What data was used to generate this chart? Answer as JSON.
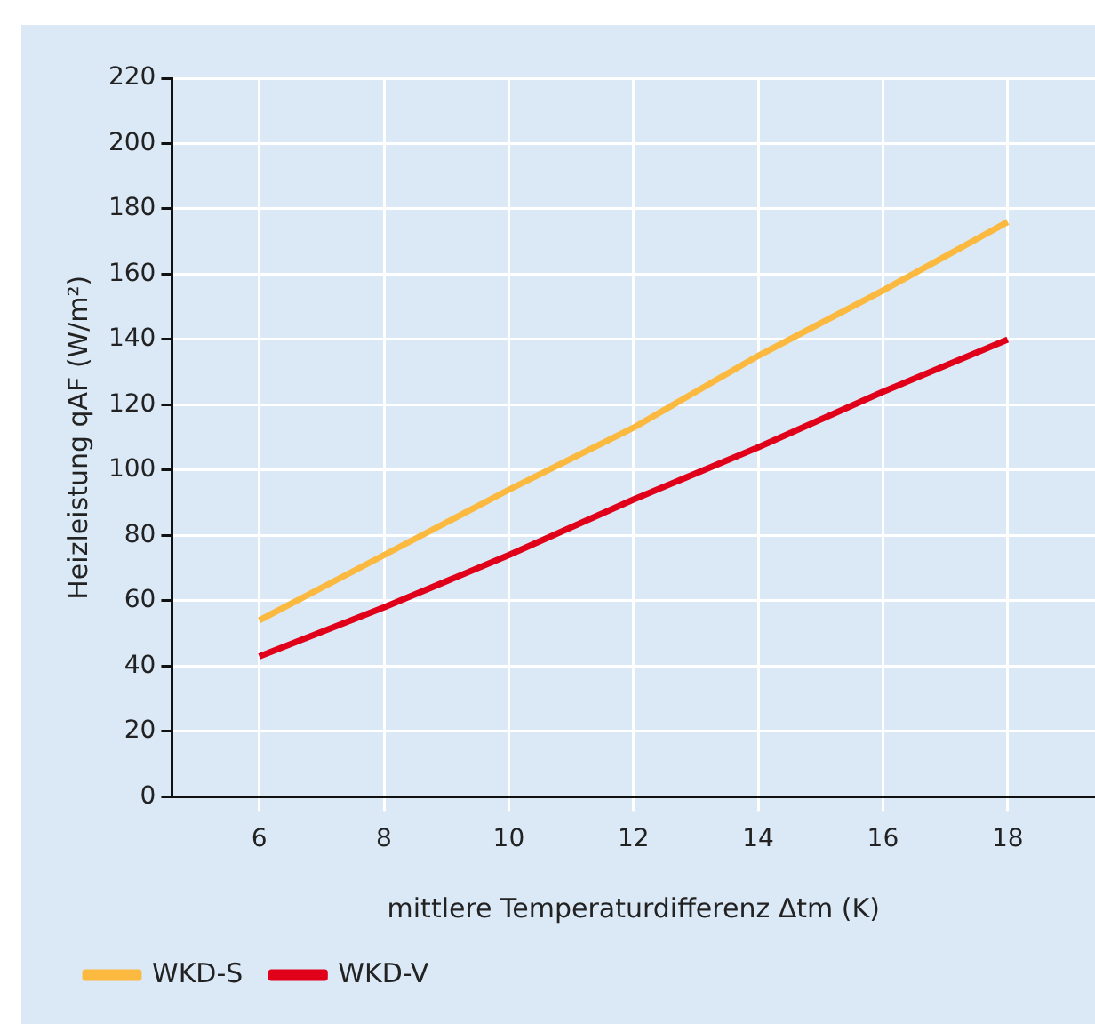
{
  "chart_data": {
    "type": "line",
    "xlabel": "mittlere Temperaturdifferenz Δtm (K)",
    "ylabel": "Heizleistung qAF (W/m²)",
    "x": [
      6,
      8,
      10,
      12,
      14,
      16,
      18
    ],
    "series": [
      {
        "name": "WKD-S",
        "color": "#fbb93f",
        "values": [
          54,
          74,
          94,
          113,
          135,
          155,
          176
        ]
      },
      {
        "name": "WKD-V",
        "color": "#e1001a",
        "values": [
          43,
          58,
          74,
          91,
          107,
          124,
          140
        ]
      }
    ],
    "xlim": [
      4.6,
      19.4
    ],
    "xticks": [
      6,
      8,
      10,
      12,
      14,
      16,
      18
    ],
    "ylim": [
      0,
      220
    ],
    "yticks": [
      0,
      20,
      40,
      60,
      80,
      100,
      120,
      140,
      160,
      180,
      200,
      220
    ],
    "grid": true,
    "legend": "bottom left",
    "marker": "none",
    "line_style": "solid"
  }
}
